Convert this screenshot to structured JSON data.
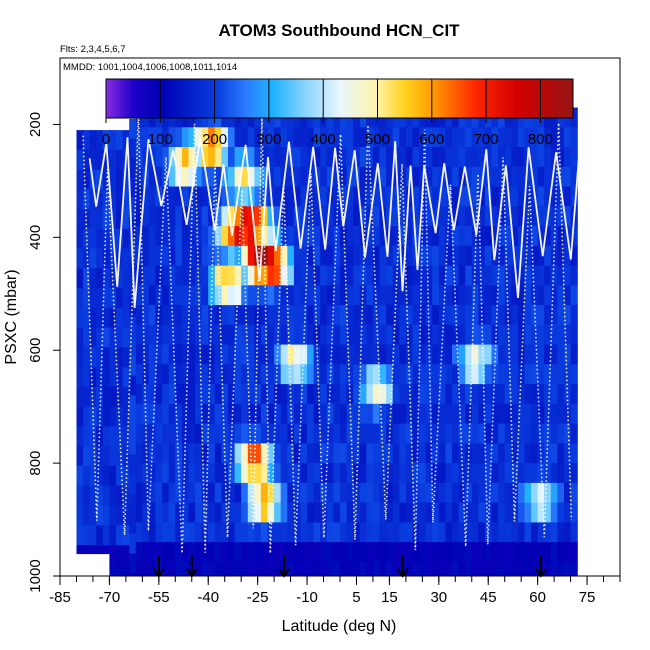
{
  "chart_data": {
    "type": "heatmap",
    "title": "ATOM3 Southbound HCN_CIT",
    "flights_label": "Flts: 2,3,4,5,6,7",
    "dates_label": "MMDD: 1001,1004,1006,1008,1011,1014",
    "xlabel": "Latitude (deg N)",
    "ylabel": "PSXC (mbar)",
    "xlim": [
      -85,
      85
    ],
    "ylim": [
      1000,
      100
    ],
    "x_ticks": [
      "-85",
      "-70",
      "-55",
      "-40",
      "-25",
      "-10",
      "5",
      "15",
      "30",
      "45",
      "60",
      "75"
    ],
    "x_tick_values": [
      -85,
      -70,
      -55,
      -40,
      -25,
      -10,
      5,
      15,
      30,
      45,
      60,
      75
    ],
    "y_ticks": [
      "200",
      "400",
      "600",
      "800",
      "1000"
    ],
    "y_tick_values": [
      200,
      400,
      600,
      800,
      1000
    ],
    "colorbar": {
      "range": [
        0,
        860
      ],
      "tick_labels": [
        "0",
        "100",
        "200",
        "300",
        "400",
        "500",
        "600",
        "700",
        "800"
      ],
      "tick_values": [
        0,
        100,
        200,
        300,
        400,
        500,
        600,
        700,
        800
      ]
    },
    "data_extent": {
      "lat_min": -80,
      "lat_max": 72,
      "p_min": 170,
      "p_max": 1000
    },
    "hotspots": [
      {
        "lat": -40,
        "p": 220,
        "value": 600
      },
      {
        "lat": -32,
        "p": 370,
        "value": 700
      },
      {
        "lat": -28,
        "p": 360,
        "value": 780
      },
      {
        "lat": -25,
        "p": 420,
        "value": 820
      },
      {
        "lat": -22,
        "p": 430,
        "value": 760
      },
      {
        "lat": -35,
        "p": 460,
        "value": 560
      },
      {
        "lat": -27,
        "p": 780,
        "value": 640
      },
      {
        "lat": -24,
        "p": 850,
        "value": 560
      },
      {
        "lat": -48,
        "p": 250,
        "value": 520
      },
      {
        "lat": -30,
        "p": 280,
        "value": 480
      },
      {
        "lat": -15,
        "p": 600,
        "value": 470
      },
      {
        "lat": 10,
        "p": 650,
        "value": 440
      },
      {
        "lat": 40,
        "p": 600,
        "value": 430
      },
      {
        "lat": 60,
        "p": 850,
        "value": 420
      }
    ],
    "takeoff_markers_lat": [
      -55,
      -45,
      -17,
      19,
      61
    ]
  }
}
